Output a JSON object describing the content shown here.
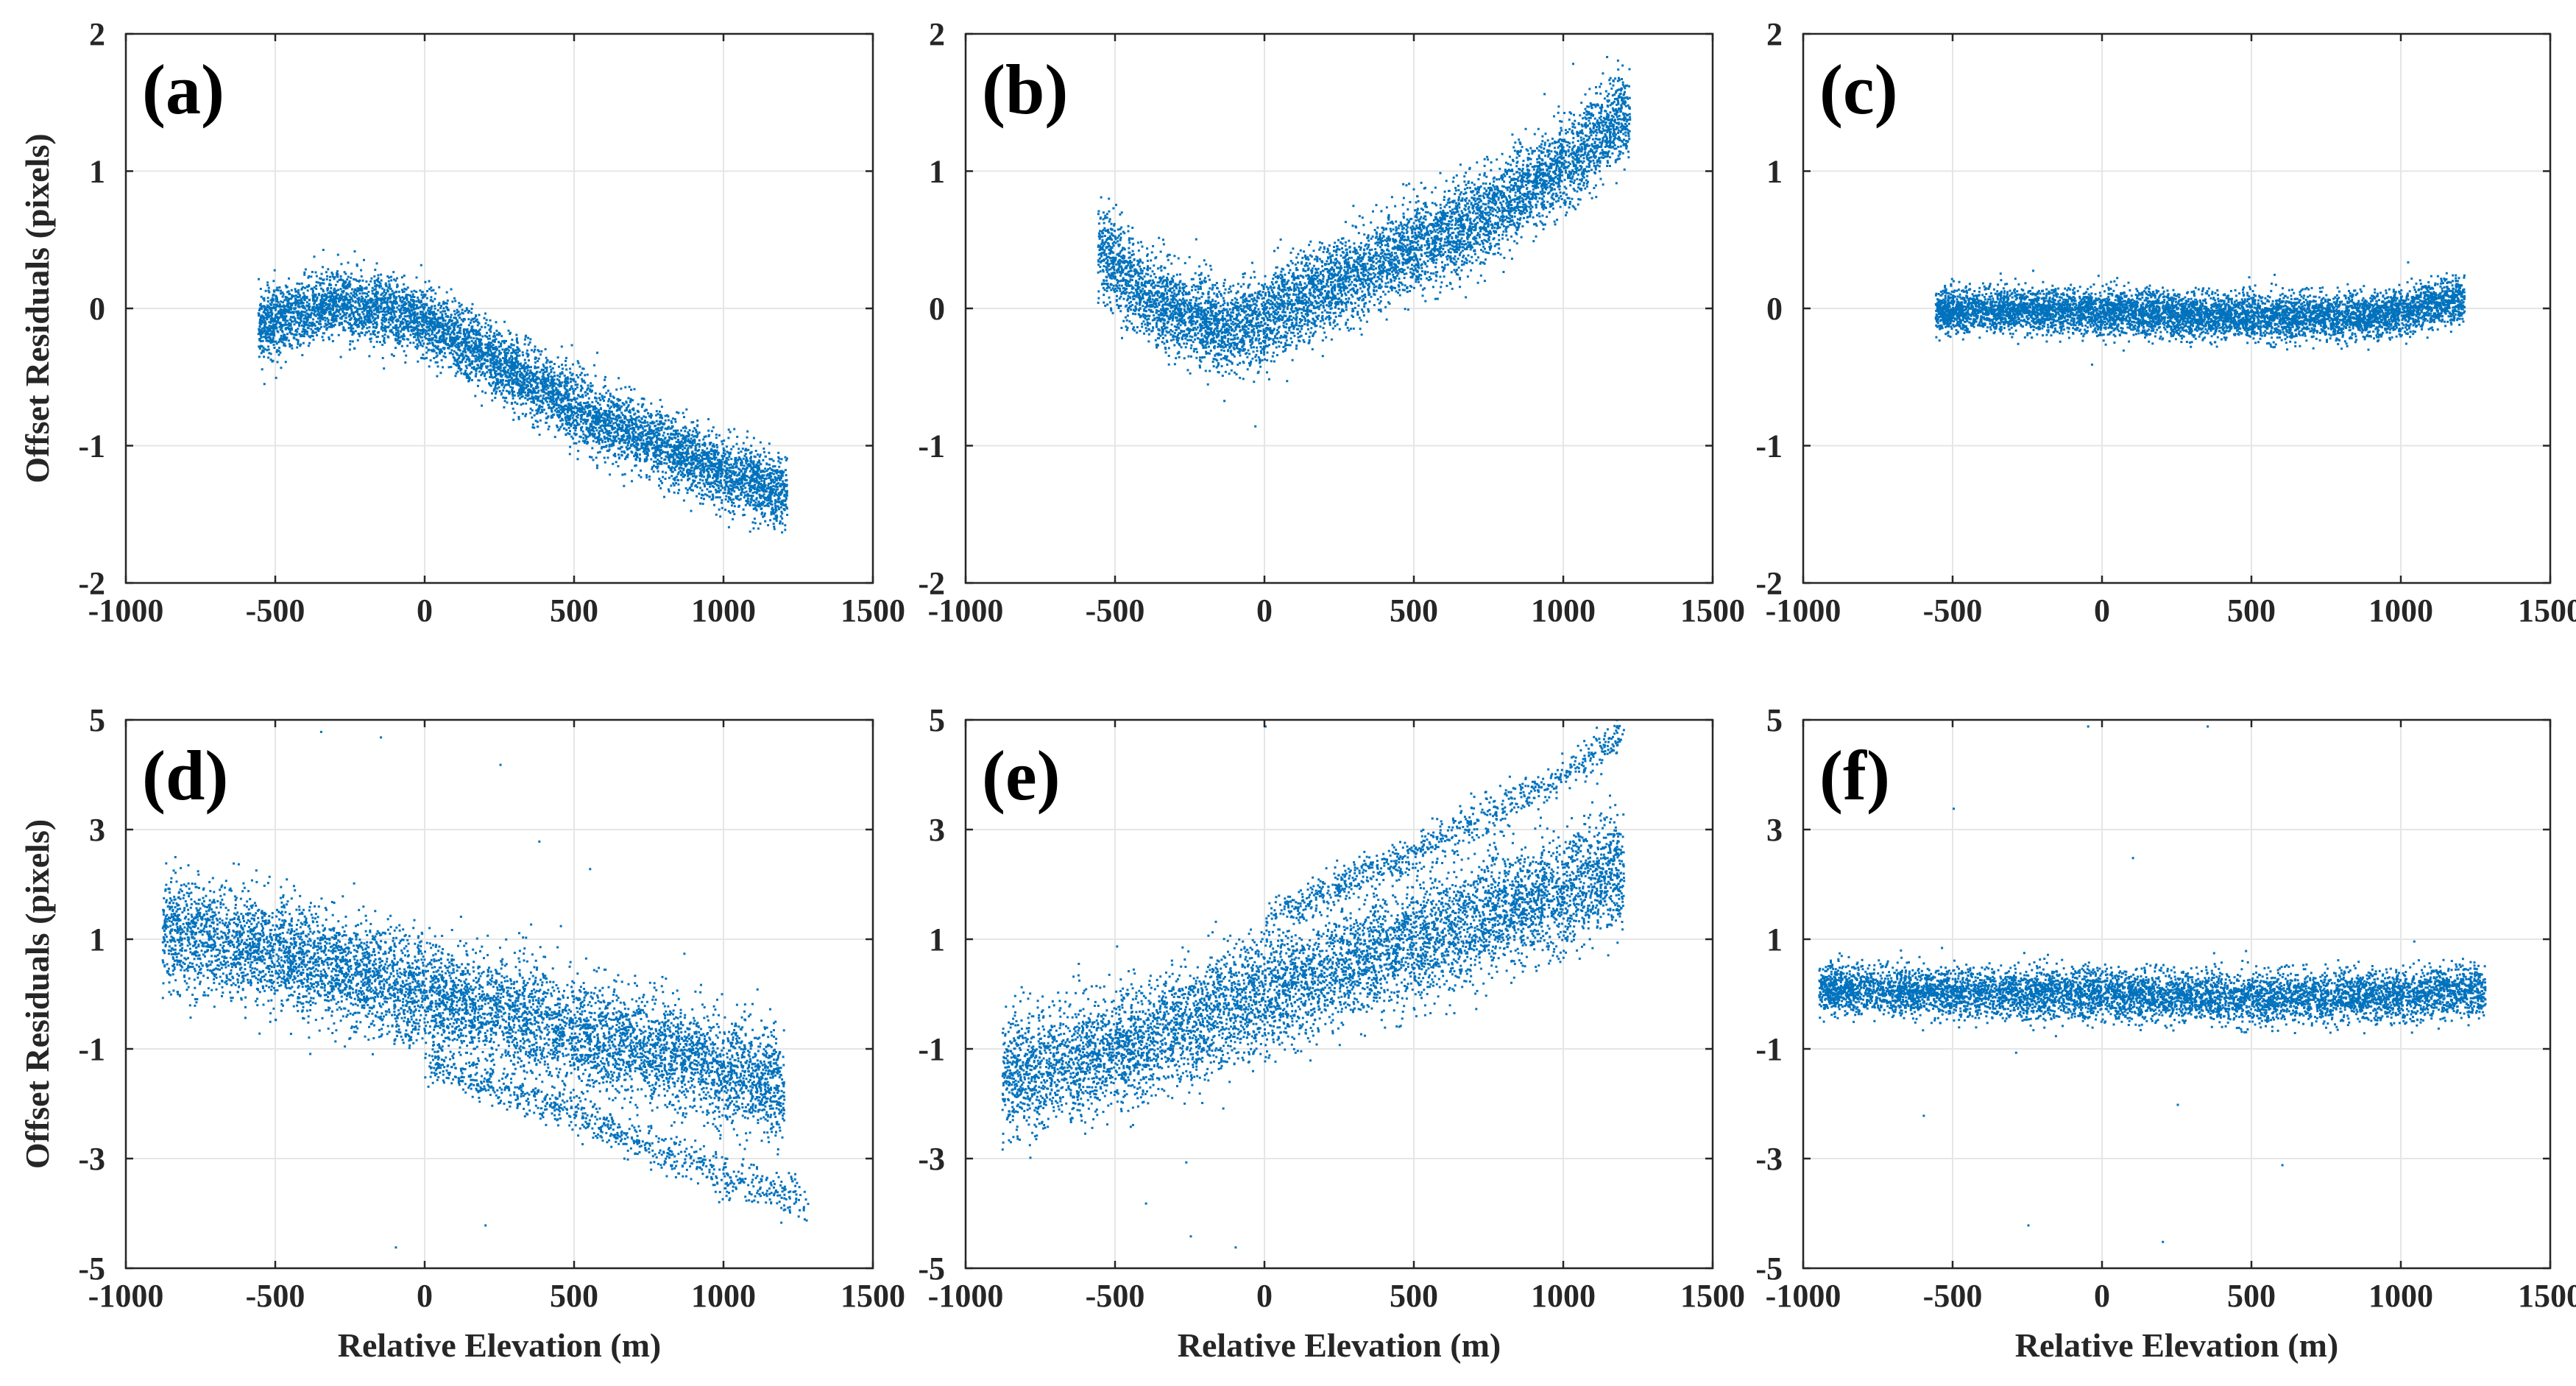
{
  "colors": {
    "points": "#0072bd",
    "axes": "#262626",
    "grid": "#e6e6e6",
    "background": "#ffffff"
  },
  "chart_data": [
    {
      "type": "scatter",
      "panel_label": "(a)",
      "xlabel": "",
      "ylabel": "Offset Residuals (pixels)",
      "xlim": [
        -1000,
        1500
      ],
      "ylim": [
        -2,
        2
      ],
      "xticks": [
        -1000,
        -500,
        0,
        500,
        1000,
        1500
      ],
      "yticks": [
        -2,
        -1,
        0,
        1,
        2
      ],
      "grid": true,
      "point_clouds": [
        {
          "x_range": [
            -560,
            1210
          ],
          "center_points": [
            [
              -560,
              -0.12
            ],
            [
              -450,
              -0.05
            ],
            [
              -300,
              0.05
            ],
            [
              -150,
              0.0
            ],
            [
              0,
              -0.1
            ],
            [
              250,
              -0.4
            ],
            [
              500,
              -0.72
            ],
            [
              750,
              -0.95
            ],
            [
              950,
              -1.15
            ],
            [
              1210,
              -1.35
            ]
          ],
          "spread": 0.25,
          "count": 6500
        }
      ],
      "outliers": []
    },
    {
      "type": "scatter",
      "panel_label": "(b)",
      "xlabel": "",
      "ylabel": "",
      "xlim": [
        -1000,
        1500
      ],
      "ylim": [
        -2,
        2
      ],
      "xticks": [
        -1000,
        -500,
        0,
        500,
        1000,
        1500
      ],
      "yticks": [
        -2,
        -1,
        0,
        1,
        2
      ],
      "grid": true,
      "point_clouds": [
        {
          "x_range": [
            -560,
            1220
          ],
          "center_points": [
            [
              -560,
              0.45
            ],
            [
              -400,
              0.1
            ],
            [
              -250,
              -0.05
            ],
            [
              -100,
              -0.15
            ],
            [
              0,
              -0.05
            ],
            [
              250,
              0.2
            ],
            [
              500,
              0.45
            ],
            [
              750,
              0.7
            ],
            [
              1000,
              1.05
            ],
            [
              1220,
              1.45
            ]
          ],
          "spread": 0.32,
          "count": 6500
        }
      ],
      "outliers": []
    },
    {
      "type": "scatter",
      "panel_label": "(c)",
      "xlabel": "",
      "ylabel": "",
      "xlim": [
        -1000,
        1500
      ],
      "ylim": [
        -2,
        2
      ],
      "xticks": [
        -1000,
        -500,
        0,
        500,
        1000,
        1500
      ],
      "yticks": [
        -2,
        -1,
        0,
        1,
        2
      ],
      "grid": true,
      "point_clouds": [
        {
          "x_range": [
            -560,
            1210
          ],
          "center_points": [
            [
              -560,
              -0.02
            ],
            [
              -300,
              0.0
            ],
            [
              0,
              -0.02
            ],
            [
              300,
              -0.05
            ],
            [
              600,
              -0.05
            ],
            [
              900,
              -0.05
            ],
            [
              1210,
              0.08
            ]
          ],
          "spread": 0.16,
          "count": 6500
        }
      ],
      "outliers": []
    },
    {
      "type": "scatter",
      "panel_label": "(d)",
      "xlabel": "Relative Elevation (m)",
      "ylabel": "Offset Residuals (pixels)",
      "xlim": [
        -1000,
        1500
      ],
      "ylim": [
        -5,
        5
      ],
      "xticks": [
        -1000,
        -500,
        0,
        500,
        1000,
        1500
      ],
      "yticks": [
        -5,
        -3,
        -1,
        1,
        3,
        5
      ],
      "grid": true,
      "point_clouds": [
        {
          "x_range": [
            -880,
            1200
          ],
          "center_points": [
            [
              -880,
              1.2
            ],
            [
              -500,
              0.8
            ],
            [
              0,
              0.0
            ],
            [
              500,
              -0.7
            ],
            [
              900,
              -1.2
            ],
            [
              1200,
              -1.7
            ]
          ],
          "spread": 1.0,
          "count": 6500
        },
        {
          "x_range": [
            0,
            1280
          ],
          "center_points": [
            [
              0,
              -1.2
            ],
            [
              500,
              -2.2
            ],
            [
              1000,
              -3.3
            ],
            [
              1280,
              -3.8
            ]
          ],
          "spread": 0.35,
          "count": 800
        }
      ],
      "outliers": [
        [
          -350,
          4.8
        ],
        [
          -150,
          4.7
        ],
        [
          250,
          4.2
        ],
        [
          380,
          2.8
        ],
        [
          -100,
          -4.6
        ],
        [
          200,
          -4.2
        ],
        [
          550,
          2.3
        ]
      ]
    },
    {
      "type": "scatter",
      "panel_label": "(e)",
      "xlabel": "Relative Elevation (m)",
      "ylabel": "",
      "xlim": [
        -1000,
        1500
      ],
      "ylim": [
        -5,
        5
      ],
      "xticks": [
        -1000,
        -500,
        0,
        500,
        1000,
        1500
      ],
      "yticks": [
        -5,
        -3,
        -1,
        1,
        3,
        5
      ],
      "grid": true,
      "point_clouds": [
        {
          "x_range": [
            -880,
            1200
          ],
          "center_points": [
            [
              -880,
              -1.5
            ],
            [
              -500,
              -1.0
            ],
            [
              0,
              0.0
            ],
            [
              500,
              1.0
            ],
            [
              900,
              1.7
            ],
            [
              1200,
              2.3
            ]
          ],
          "spread": 1.05,
          "count": 6500
        },
        {
          "x_range": [
            0,
            1200
          ],
          "center_points": [
            [
              0,
              1.4
            ],
            [
              500,
              2.6
            ],
            [
              1000,
              4.0
            ],
            [
              1200,
              4.8
            ]
          ],
          "spread": 0.35,
          "count": 800
        }
      ],
      "outliers": [
        [
          -250,
          -4.4
        ],
        [
          -100,
          -4.6
        ],
        [
          0,
          4.9
        ],
        [
          -400,
          -3.8
        ]
      ]
    },
    {
      "type": "scatter",
      "panel_label": "(f)",
      "xlabel": "Relative Elevation (m)",
      "ylabel": "",
      "xlim": [
        -1000,
        1500
      ],
      "ylim": [
        -5,
        5
      ],
      "xticks": [
        -1000,
        -500,
        0,
        500,
        1000,
        1500
      ],
      "yticks": [
        -5,
        -3,
        -1,
        1,
        3,
        5
      ],
      "grid": true,
      "point_clouds": [
        {
          "x_range": [
            -950,
            1280
          ],
          "center_points": [
            [
              -950,
              0.1
            ],
            [
              -500,
              0.05
            ],
            [
              0,
              0.0
            ],
            [
              500,
              -0.05
            ],
            [
              1000,
              0.0
            ],
            [
              1280,
              0.1
            ]
          ],
          "spread": 0.45,
          "count": 6500
        }
      ],
      "outliers": [
        [
          -500,
          3.4
        ],
        [
          -250,
          -4.2
        ],
        [
          -50,
          4.9
        ],
        [
          200,
          -4.5
        ],
        [
          350,
          4.9
        ],
        [
          600,
          -3.1
        ],
        [
          100,
          2.5
        ],
        [
          -600,
          -2.2
        ],
        [
          250,
          -2.0
        ]
      ]
    }
  ]
}
